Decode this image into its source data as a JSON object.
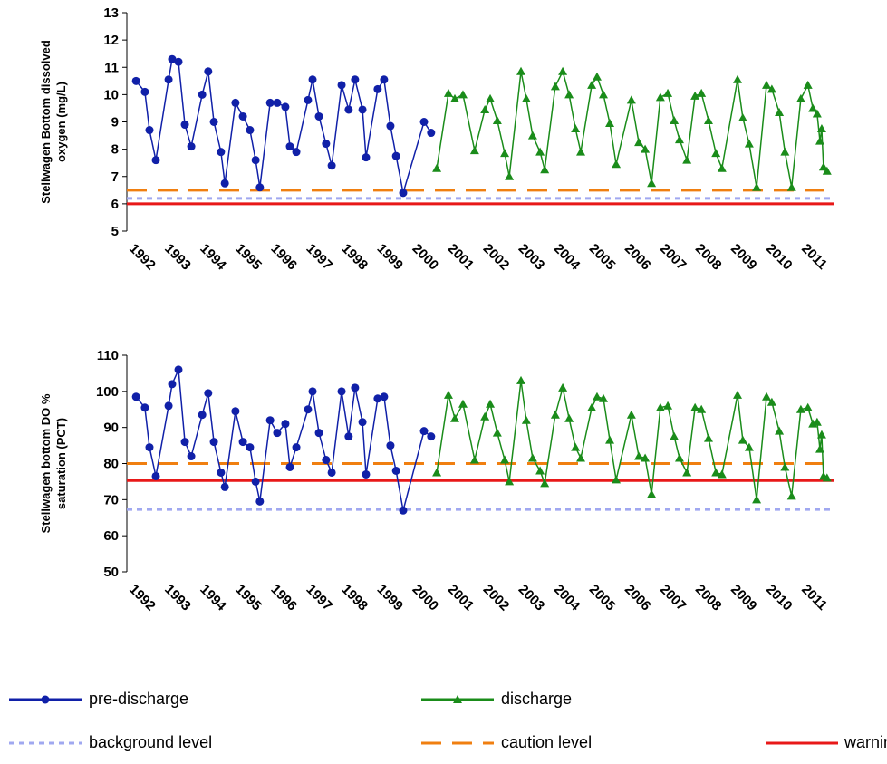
{
  "chart_data": [
    {
      "type": "line",
      "ylabel": [
        "Stellwagen Bottom dissolved",
        "oxygen (mg/L)"
      ],
      "xlim": [
        1992,
        2012
      ],
      "xticks": [
        1992,
        1993,
        1994,
        1995,
        1996,
        1997,
        1998,
        1999,
        2000,
        2001,
        2002,
        2003,
        2004,
        2005,
        2006,
        2007,
        2008,
        2009,
        2010,
        2011
      ],
      "ylim": [
        5,
        13
      ],
      "yticks": [
        5,
        6,
        7,
        8,
        9,
        10,
        11,
        12,
        13
      ],
      "series": [
        {
          "name": "pre-discharge",
          "color": "#1020a8",
          "marker": "circle",
          "x": [
            1992.26,
            1992.51,
            1992.64,
            1992.82,
            1993.18,
            1993.28,
            1993.46,
            1993.64,
            1993.82,
            1994.13,
            1994.3,
            1994.46,
            1994.66,
            1994.77,
            1995.07,
            1995.28,
            1995.48,
            1995.64,
            1995.76,
            1996.05,
            1996.25,
            1996.48,
            1996.61,
            1996.79,
            1997.12,
            1997.25,
            1997.43,
            1997.63,
            1997.79,
            1998.07,
            1998.27,
            1998.45,
            1998.66,
            1998.76,
            1999.09,
            1999.27,
            1999.45,
            1999.61,
            1999.81,
            2000.4,
            2000.6
          ],
          "values": [
            10.5,
            10.1,
            8.7,
            7.6,
            10.55,
            11.3,
            11.2,
            8.9,
            8.1,
            10.0,
            10.85,
            9.0,
            7.9,
            6.75,
            9.7,
            9.2,
            8.7,
            7.6,
            6.6,
            9.7,
            9.7,
            9.55,
            8.1,
            7.9,
            9.8,
            10.55,
            9.2,
            8.2,
            7.4,
            10.35,
            9.45,
            10.55,
            9.45,
            7.7,
            10.2,
            10.55,
            8.85,
            7.75,
            6.4,
            9.0,
            8.6
          ]
        },
        {
          "name": "discharge",
          "color": "#1a8c1a",
          "marker": "triangle",
          "x": [
            2000.76,
            2001.09,
            2001.27,
            2001.5,
            2001.83,
            2002.12,
            2002.27,
            2002.47,
            2002.68,
            2002.81,
            2003.14,
            2003.29,
            2003.47,
            2003.68,
            2003.81,
            2004.11,
            2004.32,
            2004.5,
            2004.68,
            2004.83,
            2005.14,
            2005.29,
            2005.47,
            2005.65,
            2005.83,
            2006.26,
            2006.47,
            2006.65,
            2006.83,
            2007.08,
            2007.29,
            2007.47,
            2007.62,
            2007.83,
            2008.06,
            2008.24,
            2008.44,
            2008.65,
            2008.82,
            2009.26,
            2009.41,
            2009.59,
            2009.8,
            2010.08,
            2010.23,
            2010.44,
            2010.6,
            2010.79,
            2011.05,
            2011.25,
            2011.39,
            2011.51,
            2011.59,
            2011.64,
            2011.69,
            2011.79
          ],
          "values": [
            7.3,
            10.05,
            9.85,
            10.0,
            7.95,
            9.45,
            9.85,
            9.05,
            7.85,
            7.0,
            10.85,
            9.85,
            8.5,
            7.9,
            7.25,
            10.3,
            10.85,
            10.0,
            8.75,
            7.9,
            10.35,
            10.65,
            10.0,
            8.95,
            7.45,
            9.8,
            8.25,
            8.0,
            6.75,
            9.9,
            10.05,
            9.05,
            8.35,
            7.6,
            9.95,
            10.05,
            9.05,
            7.85,
            7.3,
            10.55,
            9.15,
            8.2,
            6.6,
            10.35,
            10.2,
            9.35,
            7.9,
            6.6,
            9.85,
            10.35,
            9.5,
            9.3,
            8.3,
            8.75,
            7.35,
            7.2
          ]
        }
      ],
      "hlines": [
        {
          "name": "background level",
          "color": "#a0a8f0",
          "dash": "short",
          "value": 6.2
        },
        {
          "name": "caution level",
          "color": "#f07f10",
          "dash": "long",
          "value": 6.5
        },
        {
          "name": "warning level",
          "color": "#e81818",
          "dash": "solid",
          "value": 6.0
        }
      ]
    },
    {
      "type": "line",
      "ylabel": [
        "Stellwagen bottom DO %",
        "saturation (PCT)"
      ],
      "xlim": [
        1992,
        2012
      ],
      "xticks": [
        1992,
        1993,
        1994,
        1995,
        1996,
        1997,
        1998,
        1999,
        2000,
        2001,
        2002,
        2003,
        2004,
        2005,
        2006,
        2007,
        2008,
        2009,
        2010,
        2011
      ],
      "ylim": [
        50,
        110
      ],
      "yticks": [
        50,
        60,
        70,
        80,
        90,
        100,
        110
      ],
      "series": [
        {
          "color": "#1020a8",
          "marker": "circle",
          "x": [
            1992.26,
            1992.51,
            1992.64,
            1992.82,
            1993.18,
            1993.28,
            1993.46,
            1993.64,
            1993.82,
            1994.13,
            1994.3,
            1994.46,
            1994.66,
            1994.77,
            1995.07,
            1995.28,
            1995.48,
            1995.64,
            1995.76,
            1996.05,
            1996.25,
            1996.48,
            1996.61,
            1996.79,
            1997.12,
            1997.25,
            1997.43,
            1997.63,
            1997.79,
            1998.07,
            1998.27,
            1998.45,
            1998.66,
            1998.76,
            1999.09,
            1999.27,
            1999.45,
            1999.61,
            1999.81,
            2000.4,
            2000.6
          ],
          "values": [
            98.5,
            95.5,
            84.5,
            76.5,
            96,
            102,
            106,
            86,
            82,
            93.5,
            99.5,
            86,
            77.5,
            73.5,
            94.5,
            86,
            84.5,
            75,
            69.5,
            92,
            88.5,
            91,
            79,
            84.5,
            95,
            100,
            88.5,
            81,
            77.5,
            100,
            87.5,
            101,
            91.5,
            77,
            98,
            98.5,
            85,
            78,
            67,
            89,
            87.5
          ]
        },
        {
          "color": "#1a8c1a",
          "marker": "triangle",
          "x": [
            2000.76,
            2001.09,
            2001.27,
            2001.5,
            2001.83,
            2002.12,
            2002.27,
            2002.47,
            2002.68,
            2002.81,
            2003.14,
            2003.29,
            2003.47,
            2003.68,
            2003.81,
            2004.11,
            2004.32,
            2004.5,
            2004.68,
            2004.83,
            2005.14,
            2005.29,
            2005.47,
            2005.65,
            2005.83,
            2006.26,
            2006.47,
            2006.65,
            2006.83,
            2007.08,
            2007.29,
            2007.47,
            2007.62,
            2007.83,
            2008.06,
            2008.24,
            2008.44,
            2008.65,
            2008.82,
            2009.26,
            2009.41,
            2009.59,
            2009.8,
            2010.08,
            2010.23,
            2010.44,
            2010.6,
            2010.79,
            2011.05,
            2011.25,
            2011.39,
            2011.51,
            2011.59,
            2011.64,
            2011.69,
            2011.79
          ],
          "values": [
            77.5,
            99,
            92.5,
            96.5,
            81,
            93,
            96.5,
            88.5,
            81,
            75,
            103,
            92,
            81.5,
            78,
            74.5,
            93.5,
            101,
            92.5,
            84.5,
            81.5,
            95.5,
            98.5,
            98,
            86.5,
            75.5,
            93.5,
            82,
            81.5,
            71.5,
            95.5,
            96,
            87.5,
            81.5,
            77.5,
            95.5,
            95,
            87,
            77.5,
            77,
            99,
            86.5,
            84.5,
            70,
            98.5,
            97,
            89,
            79,
            71,
            95,
            95.5,
            91,
            91.5,
            84,
            88,
            76.5,
            76
          ]
        }
      ],
      "hlines": [
        {
          "color": "#a0a8f0",
          "dash": "short",
          "value": 67.3
        },
        {
          "color": "#f07f10",
          "dash": "long",
          "value": 80
        },
        {
          "color": "#e81818",
          "dash": "solid",
          "value": 75.3
        }
      ]
    }
  ]
}
